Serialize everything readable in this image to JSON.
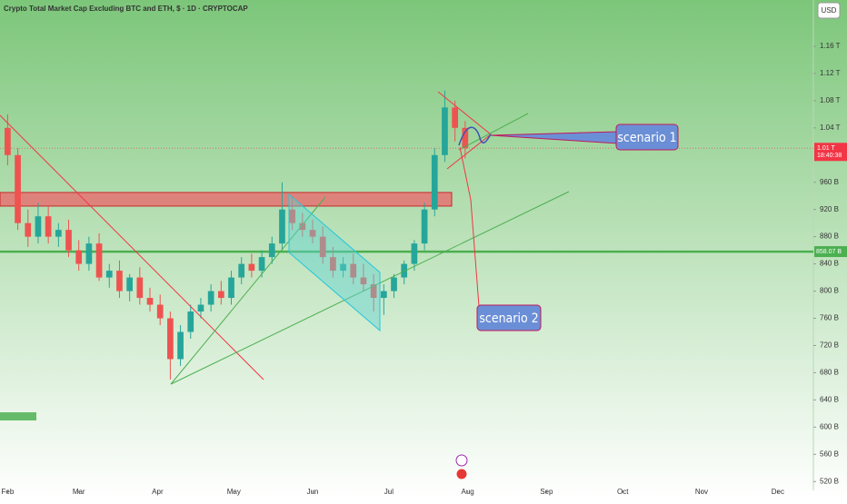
{
  "chart_data": {
    "type": "candlestick",
    "title": "Crypto Total Market Cap Excluding BTC and ETH, $ · 1D · CRYPTOCAP",
    "currency": "USD",
    "x": [
      0,
      4,
      8,
      12,
      16,
      20,
      24,
      28,
      32,
      36,
      40,
      44,
      48,
      52,
      56,
      60,
      64,
      68,
      72,
      76,
      80,
      84,
      88,
      92,
      96,
      100,
      104,
      108,
      112,
      116,
      120,
      124,
      128,
      132,
      136,
      140,
      144,
      148,
      152,
      156,
      160,
      164,
      168,
      172,
      176,
      180
    ],
    "open": [
      1040,
      1000,
      900,
      880,
      910,
      880,
      890,
      860,
      840,
      870,
      820,
      830,
      800,
      820,
      790,
      780,
      760,
      700,
      740,
      770,
      780,
      800,
      790,
      820,
      840,
      830,
      850,
      870,
      920,
      900,
      890,
      880,
      850,
      830,
      840,
      820,
      810,
      790,
      800,
      820,
      840,
      870,
      920,
      1000,
      1070,
      1040
    ],
    "high": [
      1060,
      1010,
      920,
      930,
      925,
      900,
      905,
      875,
      880,
      885,
      840,
      845,
      825,
      835,
      805,
      795,
      770,
      750,
      780,
      790,
      810,
      815,
      830,
      850,
      855,
      860,
      880,
      960,
      940,
      915,
      905,
      895,
      865,
      850,
      855,
      840,
      825,
      810,
      825,
      845,
      875,
      930,
      1010,
      1095,
      1080,
      1050
    ],
    "low": [
      985,
      890,
      865,
      870,
      870,
      865,
      850,
      830,
      830,
      815,
      805,
      790,
      785,
      780,
      770,
      750,
      670,
      690,
      730,
      760,
      770,
      780,
      780,
      810,
      820,
      820,
      840,
      860,
      890,
      880,
      870,
      840,
      820,
      820,
      810,
      800,
      770,
      765,
      790,
      810,
      830,
      860,
      910,
      990,
      1020,
      995
    ],
    "close": [
      1000,
      900,
      880,
      910,
      880,
      890,
      860,
      840,
      870,
      820,
      830,
      800,
      820,
      790,
      780,
      760,
      700,
      740,
      770,
      780,
      800,
      790,
      820,
      840,
      830,
      850,
      870,
      920,
      900,
      890,
      880,
      850,
      830,
      840,
      820,
      810,
      790,
      800,
      820,
      840,
      870,
      920,
      1000,
      1070,
      1040,
      1010
    ],
    "up_color": "#26a69a",
    "down_color": "#ef5350",
    "xlim": [
      -3,
      317
    ],
    "xticks": [
      {
        "value": 0,
        "label": "Feb"
      },
      {
        "value": 28,
        "label": "Mar"
      },
      {
        "value": 59,
        "label": "Apr"
      },
      {
        "value": 89,
        "label": "May"
      },
      {
        "value": 120,
        "label": "Jun"
      },
      {
        "value": 150,
        "label": "Jul"
      },
      {
        "value": 181,
        "label": "Aug"
      },
      {
        "value": 212,
        "label": "Sep"
      },
      {
        "value": 242,
        "label": "Oct"
      },
      {
        "value": 273,
        "label": "Nov"
      },
      {
        "value": 303,
        "label": "Dec"
      }
    ],
    "ylim": [
      507,
      1228
    ],
    "yticks": [
      {
        "value": 520,
        "label": "520 B"
      },
      {
        "value": 560,
        "label": "560 B"
      },
      {
        "value": 600,
        "label": "600 B"
      },
      {
        "value": 640,
        "label": "640 B"
      },
      {
        "value": 680,
        "label": "680 B"
      },
      {
        "value": 720,
        "label": "720 B"
      },
      {
        "value": 760,
        "label": "760 B"
      },
      {
        "value": 800,
        "label": "800 B"
      },
      {
        "value": 840,
        "label": "840 B"
      },
      {
        "value": 880,
        "label": "880 B"
      },
      {
        "value": 920,
        "label": "920 B"
      },
      {
        "value": 960,
        "label": "960 B"
      },
      {
        "value": 1040,
        "label": "1.04 T"
      },
      {
        "value": 1080,
        "label": "1.08 T"
      },
      {
        "value": 1120,
        "label": "1.12 T"
      },
      {
        "value": 1160,
        "label": "1.16 T"
      }
    ],
    "support": {
      "value": 858.07,
      "label": "858.07 B",
      "color": "#4caf50"
    },
    "last_price": {
      "value": 1010,
      "label": "1.01 T",
      "countdown": "18:40:38",
      "color": "#f23645"
    },
    "resistance_zone": {
      "low": 925,
      "high": 945,
      "color": "#e57373"
    },
    "annotations": [
      "scenario 1",
      "scenario 2"
    ]
  }
}
